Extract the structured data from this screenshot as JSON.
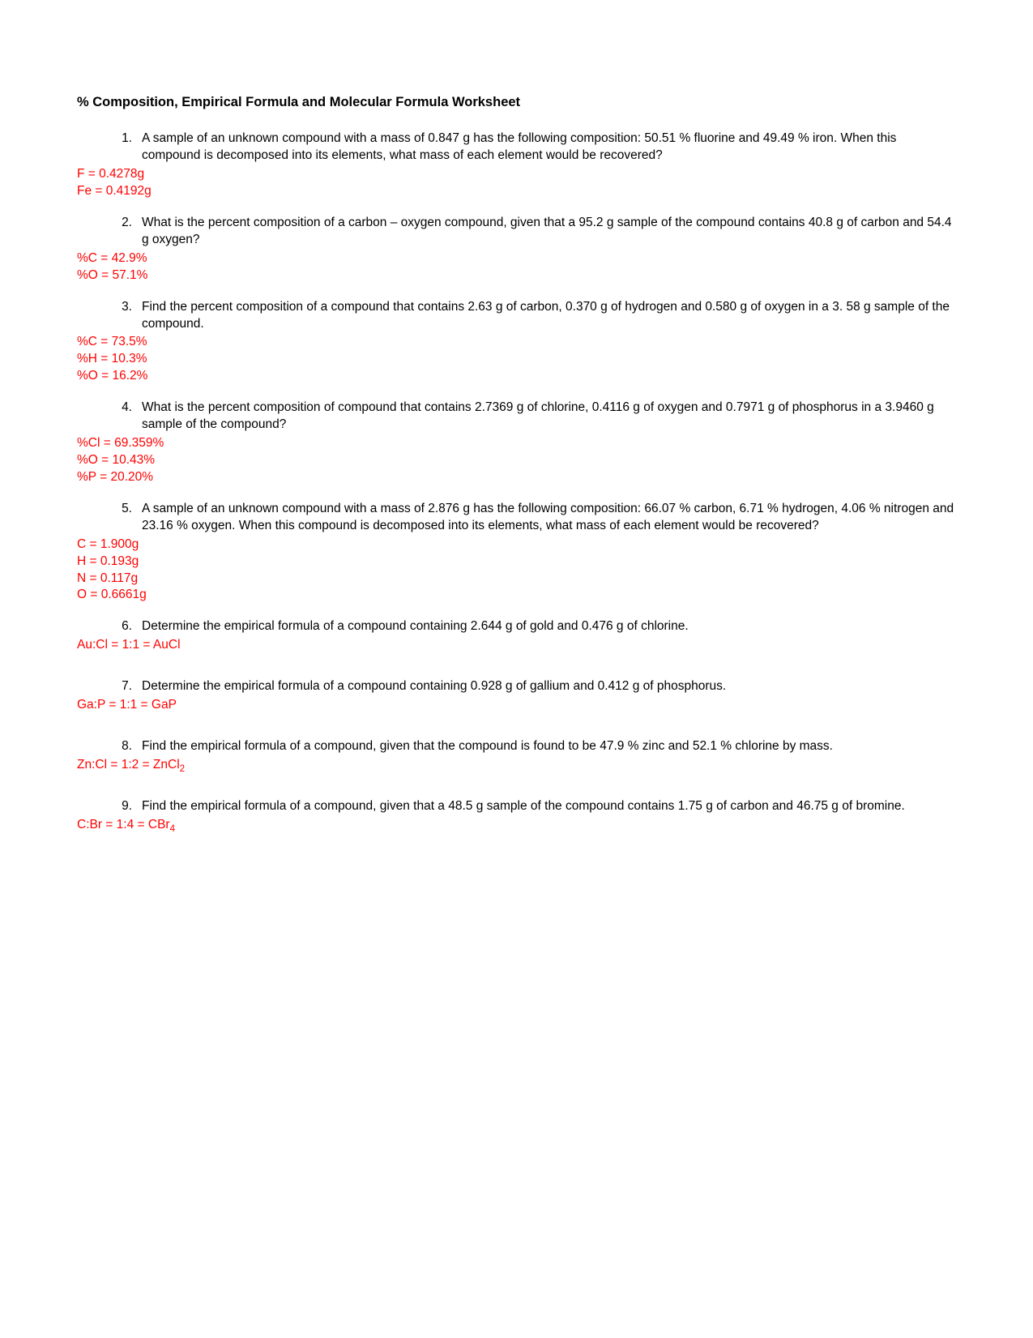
{
  "title": "% Composition, Empirical Formula and Molecular Formula Worksheet",
  "text_color": "#000000",
  "answer_color": "#ff0000",
  "background_color": "#ffffff",
  "font_family": "Arial",
  "questions": [
    {
      "num": "1.",
      "text": "A sample of an unknown compound with a mass of 0.847 g has the following composition: 50.51 % fluorine and 49.49 % iron.  When this compound is decomposed into its elements, what mass of each element would be recovered?",
      "answers": [
        "F = 0.4278g",
        "Fe = 0.4192g"
      ]
    },
    {
      "num": "2.",
      "text": "What is the percent composition of a carbon – oxygen compound, given that a 95.2 g sample of the compound contains 40.8 g of carbon and 54.4 g oxygen?",
      "answers": [
        "%C = 42.9%",
        "%O = 57.1%"
      ]
    },
    {
      "num": "3.",
      "text": "Find the percent composition of a compound that contains 2.63 g of carbon, 0.370 g of hydrogen and 0.580 g of oxygen in a 3. 58 g sample of the compound.",
      "answers": [
        "%C = 73.5%",
        "%H = 10.3%",
        "%O = 16.2%"
      ]
    },
    {
      "num": "4.",
      "text": "What is the percent composition of compound that contains 2.7369 g of chlorine, 0.4116 g of oxygen and 0.7971 g of phosphorus in a 3.9460 g sample of the compound?",
      "answers": [
        "%Cl = 69.359%",
        "%O = 10.43%",
        "%P = 20.20%"
      ]
    },
    {
      "num": "5.",
      "text": "A sample of an unknown compound with a mass of 2.876 g has the following composition: 66.07 % carbon, 6.71 % hydrogen, 4.06 % nitrogen and 23.16 % oxygen.  When this compound is decomposed into its elements, what mass of each element would be recovered?",
      "answers": [
        "C = 1.900g",
        "H = 0.193g",
        "N = 0.117g",
        "O = 0.6661g"
      ]
    },
    {
      "num": "6.",
      "text": "Determine the empirical formula of a compound containing 2.644 g of gold and 0.476 g of chlorine.",
      "answers": [
        "Au:Cl = 1:1 = AuCl"
      ]
    },
    {
      "num": "7.",
      "text": "Determine the empirical formula of a compound containing 0.928 g of gallium and 0.412 g of phosphorus.",
      "answers": [
        "Ga:P = 1:1 = GaP"
      ]
    },
    {
      "num": "8.",
      "text": "Find the empirical formula of a compound, given that the compound is found to be 47.9 % zinc and 52.1 % chlorine by mass.",
      "answers_html": "Zn:Cl = 1:2 = ZnCl<sub>2</sub>",
      "answers": [
        "Zn:Cl = 1:2 = ZnCl2"
      ]
    },
    {
      "num": "9.",
      "text": "Find the empirical formula of a compound, given that a 48.5 g sample of the compound contains 1.75 g of carbon and 46.75 g of bromine.",
      "answers_html": "C:Br = 1:4 = CBr<sub>4</sub>",
      "answers": [
        "C:Br = 1:4 = CBr4"
      ]
    }
  ]
}
